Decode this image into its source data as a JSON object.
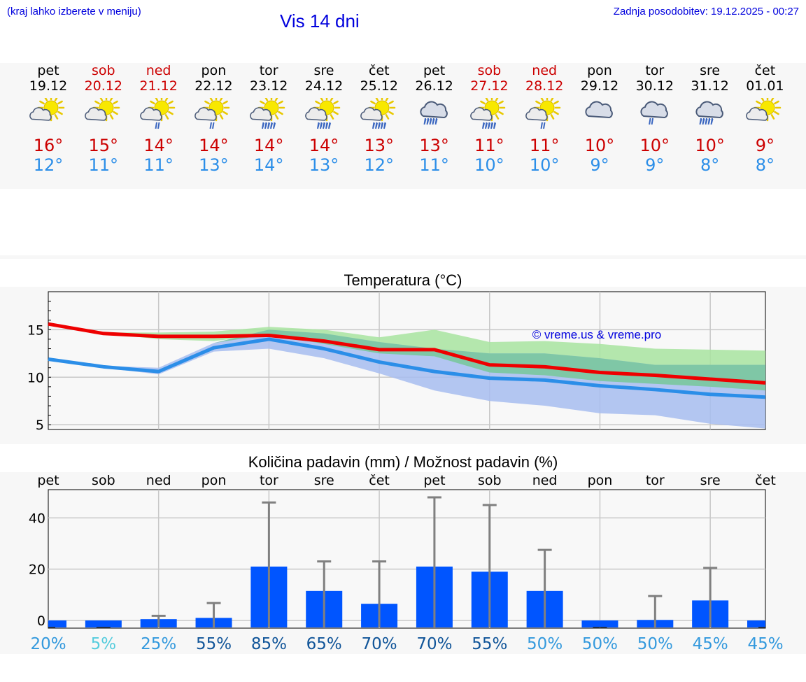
{
  "header": {
    "menu_hint": "(kraj lahko izberete v meniju)",
    "title": "Vis 14 dni",
    "updated": "Zadnja posodobitev: 19.12.2025 - 00:27"
  },
  "days": [
    {
      "name": "pet",
      "date": "19.12",
      "tmax": "16°",
      "tmin": "12°",
      "weekend": false,
      "icon": "sun-cloud-icon"
    },
    {
      "name": "sob",
      "date": "20.12",
      "tmax": "15°",
      "tmin": "11°",
      "weekend": true,
      "icon": "sun-cloud-icon"
    },
    {
      "name": "ned",
      "date": "21.12",
      "tmax": "14°",
      "tmin": "11°",
      "weekend": true,
      "icon": "sun-cloud-rain-icon"
    },
    {
      "name": "pon",
      "date": "22.12",
      "tmax": "14°",
      "tmin": "13°",
      "weekend": false,
      "icon": "sun-cloud-rain-icon"
    },
    {
      "name": "tor",
      "date": "23.12",
      "tmax": "14°",
      "tmin": "14°",
      "weekend": false,
      "icon": "sun-cloud-heavy-rain-icon"
    },
    {
      "name": "sre",
      "date": "24.12",
      "tmax": "14°",
      "tmin": "13°",
      "weekend": false,
      "icon": "sun-cloud-heavy-rain-icon"
    },
    {
      "name": "čet",
      "date": "25.12",
      "tmax": "13°",
      "tmin": "12°",
      "weekend": false,
      "icon": "sun-cloud-heavy-rain-icon"
    },
    {
      "name": "pet",
      "date": "26.12",
      "tmax": "13°",
      "tmin": "11°",
      "weekend": false,
      "icon": "cloud-heavy-rain-icon"
    },
    {
      "name": "sob",
      "date": "27.12",
      "tmax": "11°",
      "tmin": "10°",
      "weekend": true,
      "icon": "sun-cloud-heavy-rain-icon"
    },
    {
      "name": "ned",
      "date": "28.12",
      "tmax": "11°",
      "tmin": "10°",
      "weekend": true,
      "icon": "sun-cloud-rain-icon"
    },
    {
      "name": "pon",
      "date": "29.12",
      "tmax": "10°",
      "tmin": "9°",
      "weekend": false,
      "icon": "cloud-icon"
    },
    {
      "name": "tor",
      "date": "30.12",
      "tmax": "10°",
      "tmin": "9°",
      "weekend": false,
      "icon": "cloud-rain-icon"
    },
    {
      "name": "sre",
      "date": "31.12",
      "tmax": "10°",
      "tmin": "8°",
      "weekend": false,
      "icon": "cloud-heavy-rain-icon"
    },
    {
      "name": "čet",
      "date": "01.01",
      "tmax": "9°",
      "tmin": "8°",
      "weekend": false,
      "icon": "sun-cloud-icon"
    }
  ],
  "colors": {
    "max_line": "#ee0000",
    "min_line": "#2b8ee8",
    "max_band": "#a8e4a0",
    "min_band": "#a7bdf0",
    "overlap_band": "#7ac89e",
    "bar": "#0055ff",
    "errbar": "#808080"
  },
  "chart_data": [
    {
      "type": "line",
      "title": "Temperatura (°C)",
      "watermark": "© vreme.us & vreme.pro",
      "ylim": [
        4.5,
        19
      ],
      "yticks": [
        5,
        10,
        15
      ],
      "x": [
        0,
        1,
        2,
        3,
        4,
        5,
        6,
        7,
        8,
        9,
        10,
        11,
        12,
        13
      ],
      "series": [
        {
          "name": "max",
          "values": [
            15.6,
            14.6,
            14.3,
            14.3,
            14.4,
            13.8,
            12.9,
            12.9,
            11.3,
            11.1,
            10.5,
            10.2,
            9.8,
            9.4
          ],
          "band_low": [
            15.6,
            14.6,
            14.0,
            13.8,
            14.5,
            13.5,
            12.5,
            12.2,
            10.5,
            10.2,
            9.6,
            9.3,
            9.0,
            8.6
          ],
          "band_high": [
            15.6,
            14.7,
            14.7,
            14.8,
            15.3,
            15.0,
            14.2,
            15.0,
            13.7,
            13.8,
            13.5,
            13.0,
            12.9,
            12.8
          ]
        },
        {
          "name": "min",
          "values": [
            11.9,
            11.1,
            10.6,
            13.1,
            14.0,
            13.0,
            11.6,
            10.6,
            9.9,
            9.7,
            9.1,
            8.7,
            8.2,
            7.9
          ],
          "band_low": [
            11.9,
            11.0,
            10.3,
            12.7,
            13.0,
            12.0,
            10.4,
            8.6,
            7.5,
            7.0,
            6.2,
            6.0,
            5.1,
            4.6
          ],
          "band_high": [
            11.9,
            11.2,
            11.0,
            13.6,
            15.0,
            14.6,
            13.7,
            13.0,
            12.5,
            12.5,
            12.0,
            11.3,
            11.3,
            11.3
          ]
        }
      ]
    },
    {
      "type": "bar",
      "title": "Količina padavin (mm) / Možnost padavin (%)",
      "categories": [
        "pet",
        "sob",
        "ned",
        "pon",
        "tor",
        "sre",
        "čet",
        "pet",
        "sob",
        "ned",
        "pon",
        "tor",
        "sre",
        "čet"
      ],
      "values": [
        0,
        0,
        0.5,
        1,
        21,
        11.5,
        6.5,
        21,
        19,
        11.5,
        0,
        0.2,
        7.8,
        0
      ],
      "err_high": [
        0,
        0,
        1.8,
        6.8,
        46,
        23,
        23,
        48,
        45,
        27.5,
        0,
        9.5,
        20.5,
        0
      ],
      "ylim": [
        -3,
        51
      ],
      "yticks": [
        0,
        20,
        40
      ],
      "probabilities": [
        "20%",
        "5%",
        "25%",
        "55%",
        "85%",
        "65%",
        "70%",
        "70%",
        "55%",
        "50%",
        "50%",
        "50%",
        "45%",
        "45%"
      ],
      "probability_colors": [
        "#3399dd",
        "#55ccdd",
        "#3399dd",
        "#115599",
        "#115599",
        "#115599",
        "#115599",
        "#115599",
        "#115599",
        "#3399dd",
        "#3399dd",
        "#3399dd",
        "#3399dd",
        "#3399dd"
      ]
    }
  ]
}
